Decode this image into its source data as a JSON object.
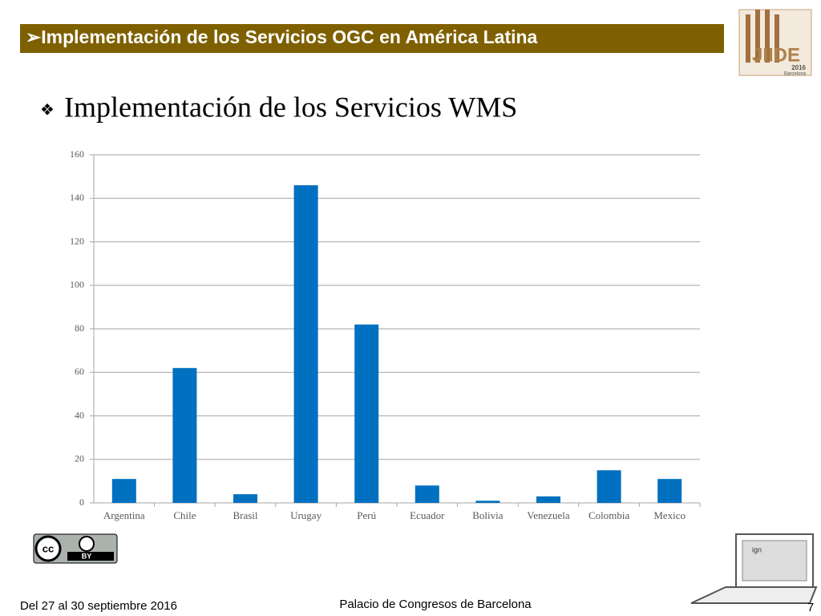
{
  "header": {
    "title": "➢Implementación de los Servicios OGC en América Latina"
  },
  "logo": {
    "name": "JIIDE",
    "year": "2016",
    "city": "Barcelona"
  },
  "heading": {
    "bullet": "❖",
    "text": "Implementación de los Servicios WMS"
  },
  "chart_data": {
    "type": "bar",
    "categories": [
      "Argentina",
      "Chile",
      "Brasil",
      "Urugay",
      "Perú",
      "Ecuador",
      "Bolivia",
      "Venezuela",
      "Colombia",
      "Mexico"
    ],
    "values": [
      11,
      62,
      4,
      146,
      82,
      8,
      1,
      3,
      15,
      11
    ],
    "color": "#0070c0",
    "ylim": [
      0,
      160
    ],
    "yticks": [
      0,
      20,
      40,
      60,
      80,
      100,
      120,
      140,
      160
    ],
    "grid": true
  },
  "license": {
    "badge": "BY"
  },
  "laptop": {
    "label": "ign"
  },
  "footer": {
    "dates": "Del 27 al 30 septiembre 2016",
    "venue": "Palacio de Congresos de Barcelona",
    "page": "7"
  }
}
